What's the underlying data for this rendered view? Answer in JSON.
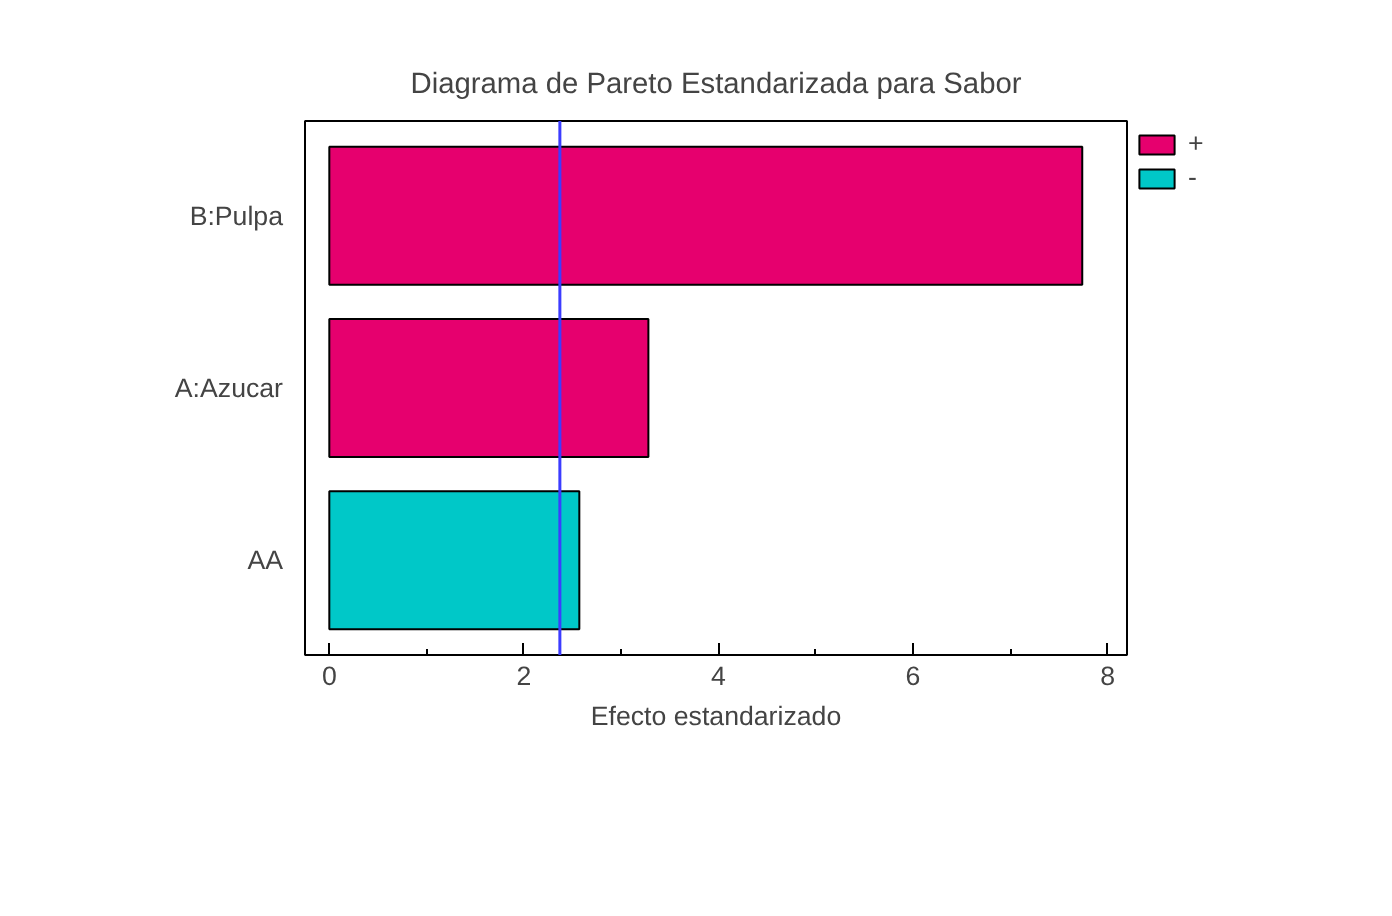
{
  "chart_data": {
    "type": "bar",
    "orientation": "horizontal",
    "title": "Diagrama de Pareto Estandarizada para Sabor",
    "xlabel": "Efecto estandarizado",
    "categories": [
      "B:Pulpa",
      "A:Azucar",
      "AA"
    ],
    "series": [
      {
        "name": "+",
        "color": "#e6006e",
        "values": [
          7.74,
          3.28,
          null
        ]
      },
      {
        "name": "-",
        "color": "#00c8c8",
        "values": [
          null,
          null,
          2.57
        ]
      }
    ],
    "xlim": [
      -0.25,
      8.2
    ],
    "xticks": [
      0,
      2,
      4,
      6,
      8
    ],
    "ref_lines": [
      {
        "axis": "x",
        "value": 2.37,
        "color": "#3c3cff"
      }
    ],
    "grid": false,
    "legend": "top right"
  }
}
